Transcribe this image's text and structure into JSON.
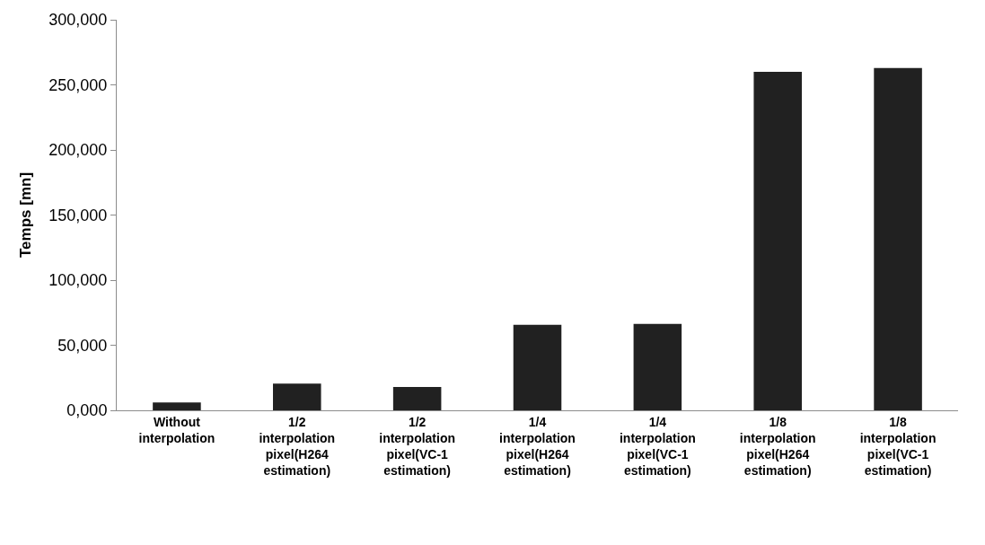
{
  "chart_data": {
    "type": "bar",
    "ylabel": "Temps [mn]",
    "categories": [
      "Without interpolation",
      "1/2 interpolation pixel(H264 estimation)",
      "1/2 interpolation pixel(VC-1 estimation)",
      "1/4 interpolation pixel(H264 estimation)",
      "1/4 interpolation pixel(VC-1 estimation)",
      "1/8 interpolation pixel(H264 estimation)",
      "1/8 interpolation pixel(VC-1 estimation)"
    ],
    "values": [
      6000,
      20500,
      18000,
      65700,
      66300,
      260000,
      263000
    ],
    "color": "#212121",
    "ylim": [
      0,
      300000
    ],
    "yticks": [
      {
        "value": 0,
        "label": "0,000"
      },
      {
        "value": 50000,
        "label": "50,000"
      },
      {
        "value": 100000,
        "label": "100,000"
      },
      {
        "value": 150000,
        "label": "150,000"
      },
      {
        "value": 200000,
        "label": "200,000"
      },
      {
        "value": 250000,
        "label": "250,000"
      },
      {
        "value": 300000,
        "label": "300,000"
      }
    ],
    "grid": false
  }
}
